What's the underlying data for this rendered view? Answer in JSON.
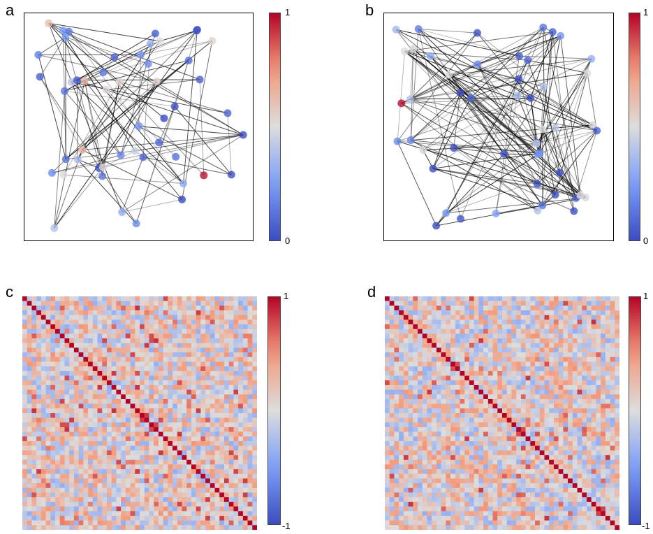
{
  "panels": {
    "a": {
      "letter": "a"
    },
    "b": {
      "letter": "b"
    },
    "c": {
      "letter": "c"
    },
    "d": {
      "letter": "d"
    }
  },
  "colorbars": {
    "network": {
      "max_label": "1",
      "min_label": "0",
      "colormap": "coolwarm"
    },
    "matrix": {
      "max_label": "1",
      "min_label": "-1",
      "colormap": "coolwarm"
    }
  },
  "colors": {
    "cold": "#3b4cc0",
    "mid": "#dddddd",
    "hot": "#b40426",
    "edge": "#000000"
  },
  "chart_data": [
    {
      "type": "scatter",
      "panel": "a",
      "description_kind": "network graph",
      "node_count": 50,
      "edge_density": "moderate",
      "color_range": [
        0,
        1
      ],
      "seed": 11
    },
    {
      "type": "scatter",
      "panel": "b",
      "description_kind": "network graph",
      "node_count": 50,
      "edge_density": "high",
      "color_range": [
        0,
        1
      ],
      "seed": 29
    },
    {
      "type": "heatmap",
      "panel": "c",
      "size": 50,
      "diagonal_value": 1,
      "color_range": [
        -1,
        1
      ],
      "seed": 7
    },
    {
      "type": "heatmap",
      "panel": "d",
      "size": 50,
      "diagonal_value": 1,
      "color_range": [
        -1,
        1
      ],
      "seed": 53
    }
  ]
}
